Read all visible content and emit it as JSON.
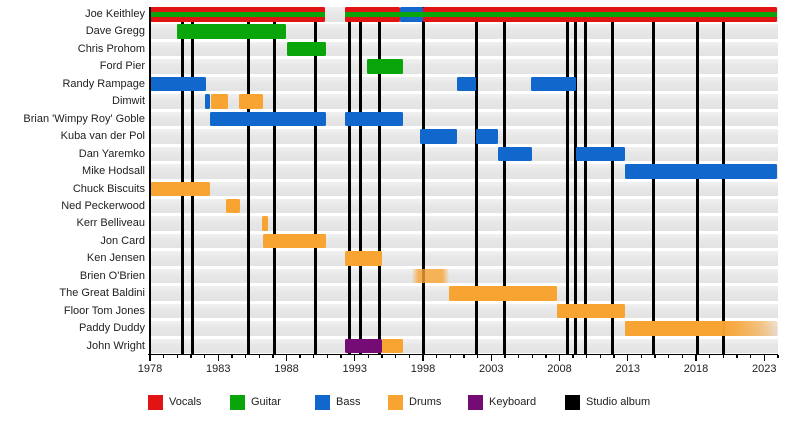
{
  "chart_data": {
    "type": "timeline-gantt",
    "description": "Band members timeline with instrument tenures and studio album release markers",
    "x_domain": [
      1978,
      2024
    ],
    "x_major_ticks": [
      1978,
      1983,
      1988,
      1993,
      1998,
      2003,
      2008,
      2013,
      2018,
      2023
    ],
    "x_minor_step": 1,
    "grid": "horizontal zebra tracks",
    "legend_position": "bottom",
    "roles": {
      "vocals": {
        "label": "Vocals",
        "color": "#e21313"
      },
      "guitar": {
        "label": "Guitar",
        "color": "#0aa50a"
      },
      "bass": {
        "label": "Bass",
        "color": "#1167cb"
      },
      "drums": {
        "label": "Drums",
        "color": "#f8a433"
      },
      "keyboard": {
        "label": "Keyboard",
        "color": "#750c75"
      },
      "album": {
        "label": "Studio album",
        "color": "#000000"
      }
    },
    "members": [
      {
        "name": "Joe Keithley",
        "bars": [
          {
            "start": 1978.0,
            "end": 1990.8,
            "role": "vocals",
            "stripe": "guitar"
          },
          {
            "start": 1992.3,
            "end": 1996.3,
            "role": "vocals",
            "stripe": "guitar"
          },
          {
            "start": 1996.3,
            "end": 1998.0,
            "role": "bass",
            "stripe": "guitar"
          },
          {
            "start": 1998.0,
            "end": 2023.9,
            "role": "vocals",
            "stripe": "guitar"
          }
        ]
      },
      {
        "name": "Dave Gregg",
        "bars": [
          {
            "start": 1980.0,
            "end": 1988.0,
            "role": "guitar"
          }
        ]
      },
      {
        "name": "Chris Prohom",
        "bars": [
          {
            "start": 1988.0,
            "end": 1990.9,
            "role": "guitar"
          }
        ]
      },
      {
        "name": "Ford Pier",
        "bars": [
          {
            "start": 1993.9,
            "end": 1996.5,
            "role": "guitar"
          }
        ]
      },
      {
        "name": "Randy Rampage",
        "bars": [
          {
            "start": 1978.0,
            "end": 1982.1,
            "role": "bass"
          },
          {
            "start": 2000.5,
            "end": 2001.9,
            "role": "bass"
          },
          {
            "start": 2005.9,
            "end": 2009.2,
            "role": "bass"
          }
        ]
      },
      {
        "name": "Dimwit",
        "bars": [
          {
            "start": 1982.0,
            "end": 1982.4,
            "role": "bass"
          },
          {
            "start": 1982.5,
            "end": 1983.75,
            "role": "drums"
          },
          {
            "start": 1984.5,
            "end": 1986.25,
            "role": "drums"
          }
        ]
      },
      {
        "name": "Brian 'Wimpy Roy' Goble",
        "bars": [
          {
            "start": 1982.4,
            "end": 1990.9,
            "role": "bass"
          },
          {
            "start": 1992.3,
            "end": 1996.5,
            "role": "bass"
          }
        ]
      },
      {
        "name": "Kuba van der Pol",
        "bars": [
          {
            "start": 1997.8,
            "end": 2000.5,
            "role": "bass"
          },
          {
            "start": 2001.9,
            "end": 2003.5,
            "role": "bass"
          }
        ]
      },
      {
        "name": "Dan Yaremko",
        "bars": [
          {
            "start": 2003.5,
            "end": 2006.0,
            "role": "bass"
          },
          {
            "start": 2009.2,
            "end": 2012.8,
            "role": "bass"
          }
        ]
      },
      {
        "name": "Mike Hodsall",
        "bars": [
          {
            "start": 2012.8,
            "end": 2023.9,
            "role": "bass"
          }
        ]
      },
      {
        "name": "Chuck Biscuits",
        "bars": [
          {
            "start": 1978.0,
            "end": 1982.4,
            "role": "drums"
          }
        ]
      },
      {
        "name": "Ned Peckerwood",
        "bars": [
          {
            "start": 1983.6,
            "end": 1984.6,
            "role": "drums"
          }
        ]
      },
      {
        "name": "Kerr Belliveau",
        "bars": [
          {
            "start": 1986.2,
            "end": 1986.65,
            "role": "drums"
          }
        ]
      },
      {
        "name": "Jon Card",
        "bars": [
          {
            "start": 1986.3,
            "end": 1990.9,
            "role": "drums"
          }
        ]
      },
      {
        "name": "Ken Jensen",
        "bars": [
          {
            "start": 1992.3,
            "end": 1995.0,
            "role": "drums"
          }
        ]
      },
      {
        "name": "Brien O'Brien",
        "bars": [
          {
            "start": 1997.2,
            "end": 1999.9,
            "role": "drums",
            "fade": "edges"
          }
        ]
      },
      {
        "name": "The Great Baldini",
        "bars": [
          {
            "start": 1999.9,
            "end": 2007.8,
            "role": "drums"
          }
        ]
      },
      {
        "name": "Floor Tom Jones",
        "bars": [
          {
            "start": 2007.8,
            "end": 2012.8,
            "role": "drums"
          }
        ]
      },
      {
        "name": "Paddy Duddy",
        "bars": [
          {
            "start": 2012.8,
            "end": 2023.9,
            "role": "drums",
            "fade": "right"
          }
        ]
      },
      {
        "name": "John Wright",
        "bars": [
          {
            "start": 1992.3,
            "end": 1995.0,
            "role": "keyboard"
          },
          {
            "start": 1995.0,
            "end": 1996.5,
            "role": "drums"
          }
        ]
      }
    ],
    "albums": [
      1980.4,
      1981.1,
      1985.2,
      1987.1,
      1990.1,
      1992.6,
      1993.4,
      1994.8,
      1998.0,
      2001.9,
      2004.0,
      2008.6,
      2009.2,
      2009.9,
      2011.9,
      2014.9,
      2018.1,
      2020.0
    ],
    "legend": [
      {
        "role": "vocals",
        "label": "Vocals"
      },
      {
        "role": "guitar",
        "label": "Guitar"
      },
      {
        "role": "bass",
        "label": "Bass"
      },
      {
        "role": "drums",
        "label": "Drums"
      },
      {
        "role": "keyboard",
        "label": "Keyboard"
      },
      {
        "role": "album",
        "label": "Studio album"
      }
    ]
  }
}
